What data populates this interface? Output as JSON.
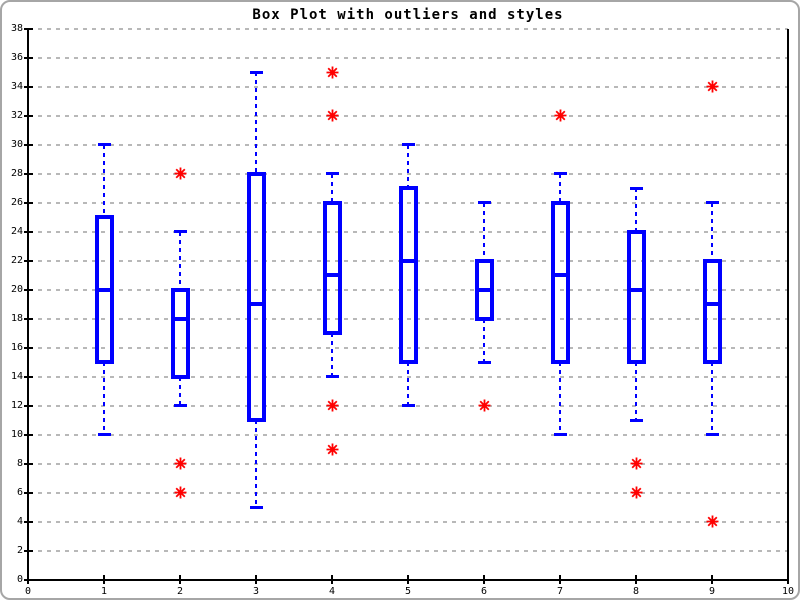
{
  "window": {
    "background": "#ffffff",
    "frame_border_color": "#a6a6a6"
  },
  "chart_data": {
    "type": "box",
    "title": "Box Plot with outliers and styles",
    "xlabel": "",
    "ylabel": "",
    "xlim": [
      0,
      10
    ],
    "ylim": [
      0,
      38
    ],
    "x_ticks": [
      0,
      1,
      2,
      3,
      4,
      5,
      6,
      7,
      8,
      9,
      10
    ],
    "y_ticks": [
      0,
      2,
      4,
      6,
      8,
      10,
      12,
      14,
      16,
      18,
      20,
      22,
      24,
      26,
      28,
      30,
      32,
      34,
      36,
      38
    ],
    "grid": true,
    "legend": false,
    "colors": {
      "box": "#0000ff",
      "outlier": "#ff0000",
      "grid": "#b8b8b8",
      "axis": "#000000"
    },
    "boxes": [
      {
        "x": 1,
        "whisker_low": 10,
        "q1": 15,
        "median": 20,
        "q3": 25,
        "whisker_high": 30,
        "outliers": []
      },
      {
        "x": 2,
        "whisker_low": 12,
        "q1": 14,
        "median": 18,
        "q3": 20,
        "whisker_high": 24,
        "outliers": [
          28,
          8,
          6
        ]
      },
      {
        "x": 3,
        "whisker_low": 5,
        "q1": 11,
        "median": 19,
        "q3": 28,
        "whisker_high": 35,
        "outliers": []
      },
      {
        "x": 4,
        "whisker_low": 14,
        "q1": 17,
        "median": 21,
        "q3": 26,
        "whisker_high": 28,
        "outliers": [
          35,
          32,
          12,
          9
        ]
      },
      {
        "x": 5,
        "whisker_low": 12,
        "q1": 15,
        "median": 22,
        "q3": 27,
        "whisker_high": 30,
        "outliers": []
      },
      {
        "x": 6,
        "whisker_low": 15,
        "q1": 18,
        "median": 20,
        "q3": 22,
        "whisker_high": 26,
        "outliers": [
          12
        ]
      },
      {
        "x": 7,
        "whisker_low": 10,
        "q1": 15,
        "median": 21,
        "q3": 26,
        "whisker_high": 28,
        "outliers": [
          32
        ]
      },
      {
        "x": 8,
        "whisker_low": 11,
        "q1": 15,
        "median": 20,
        "q3": 24,
        "whisker_high": 27,
        "outliers": [
          8,
          6
        ]
      },
      {
        "x": 9,
        "whisker_low": 10,
        "q1": 15,
        "median": 19,
        "q3": 22,
        "whisker_high": 26,
        "outliers": [
          34,
          4
        ]
      }
    ]
  }
}
